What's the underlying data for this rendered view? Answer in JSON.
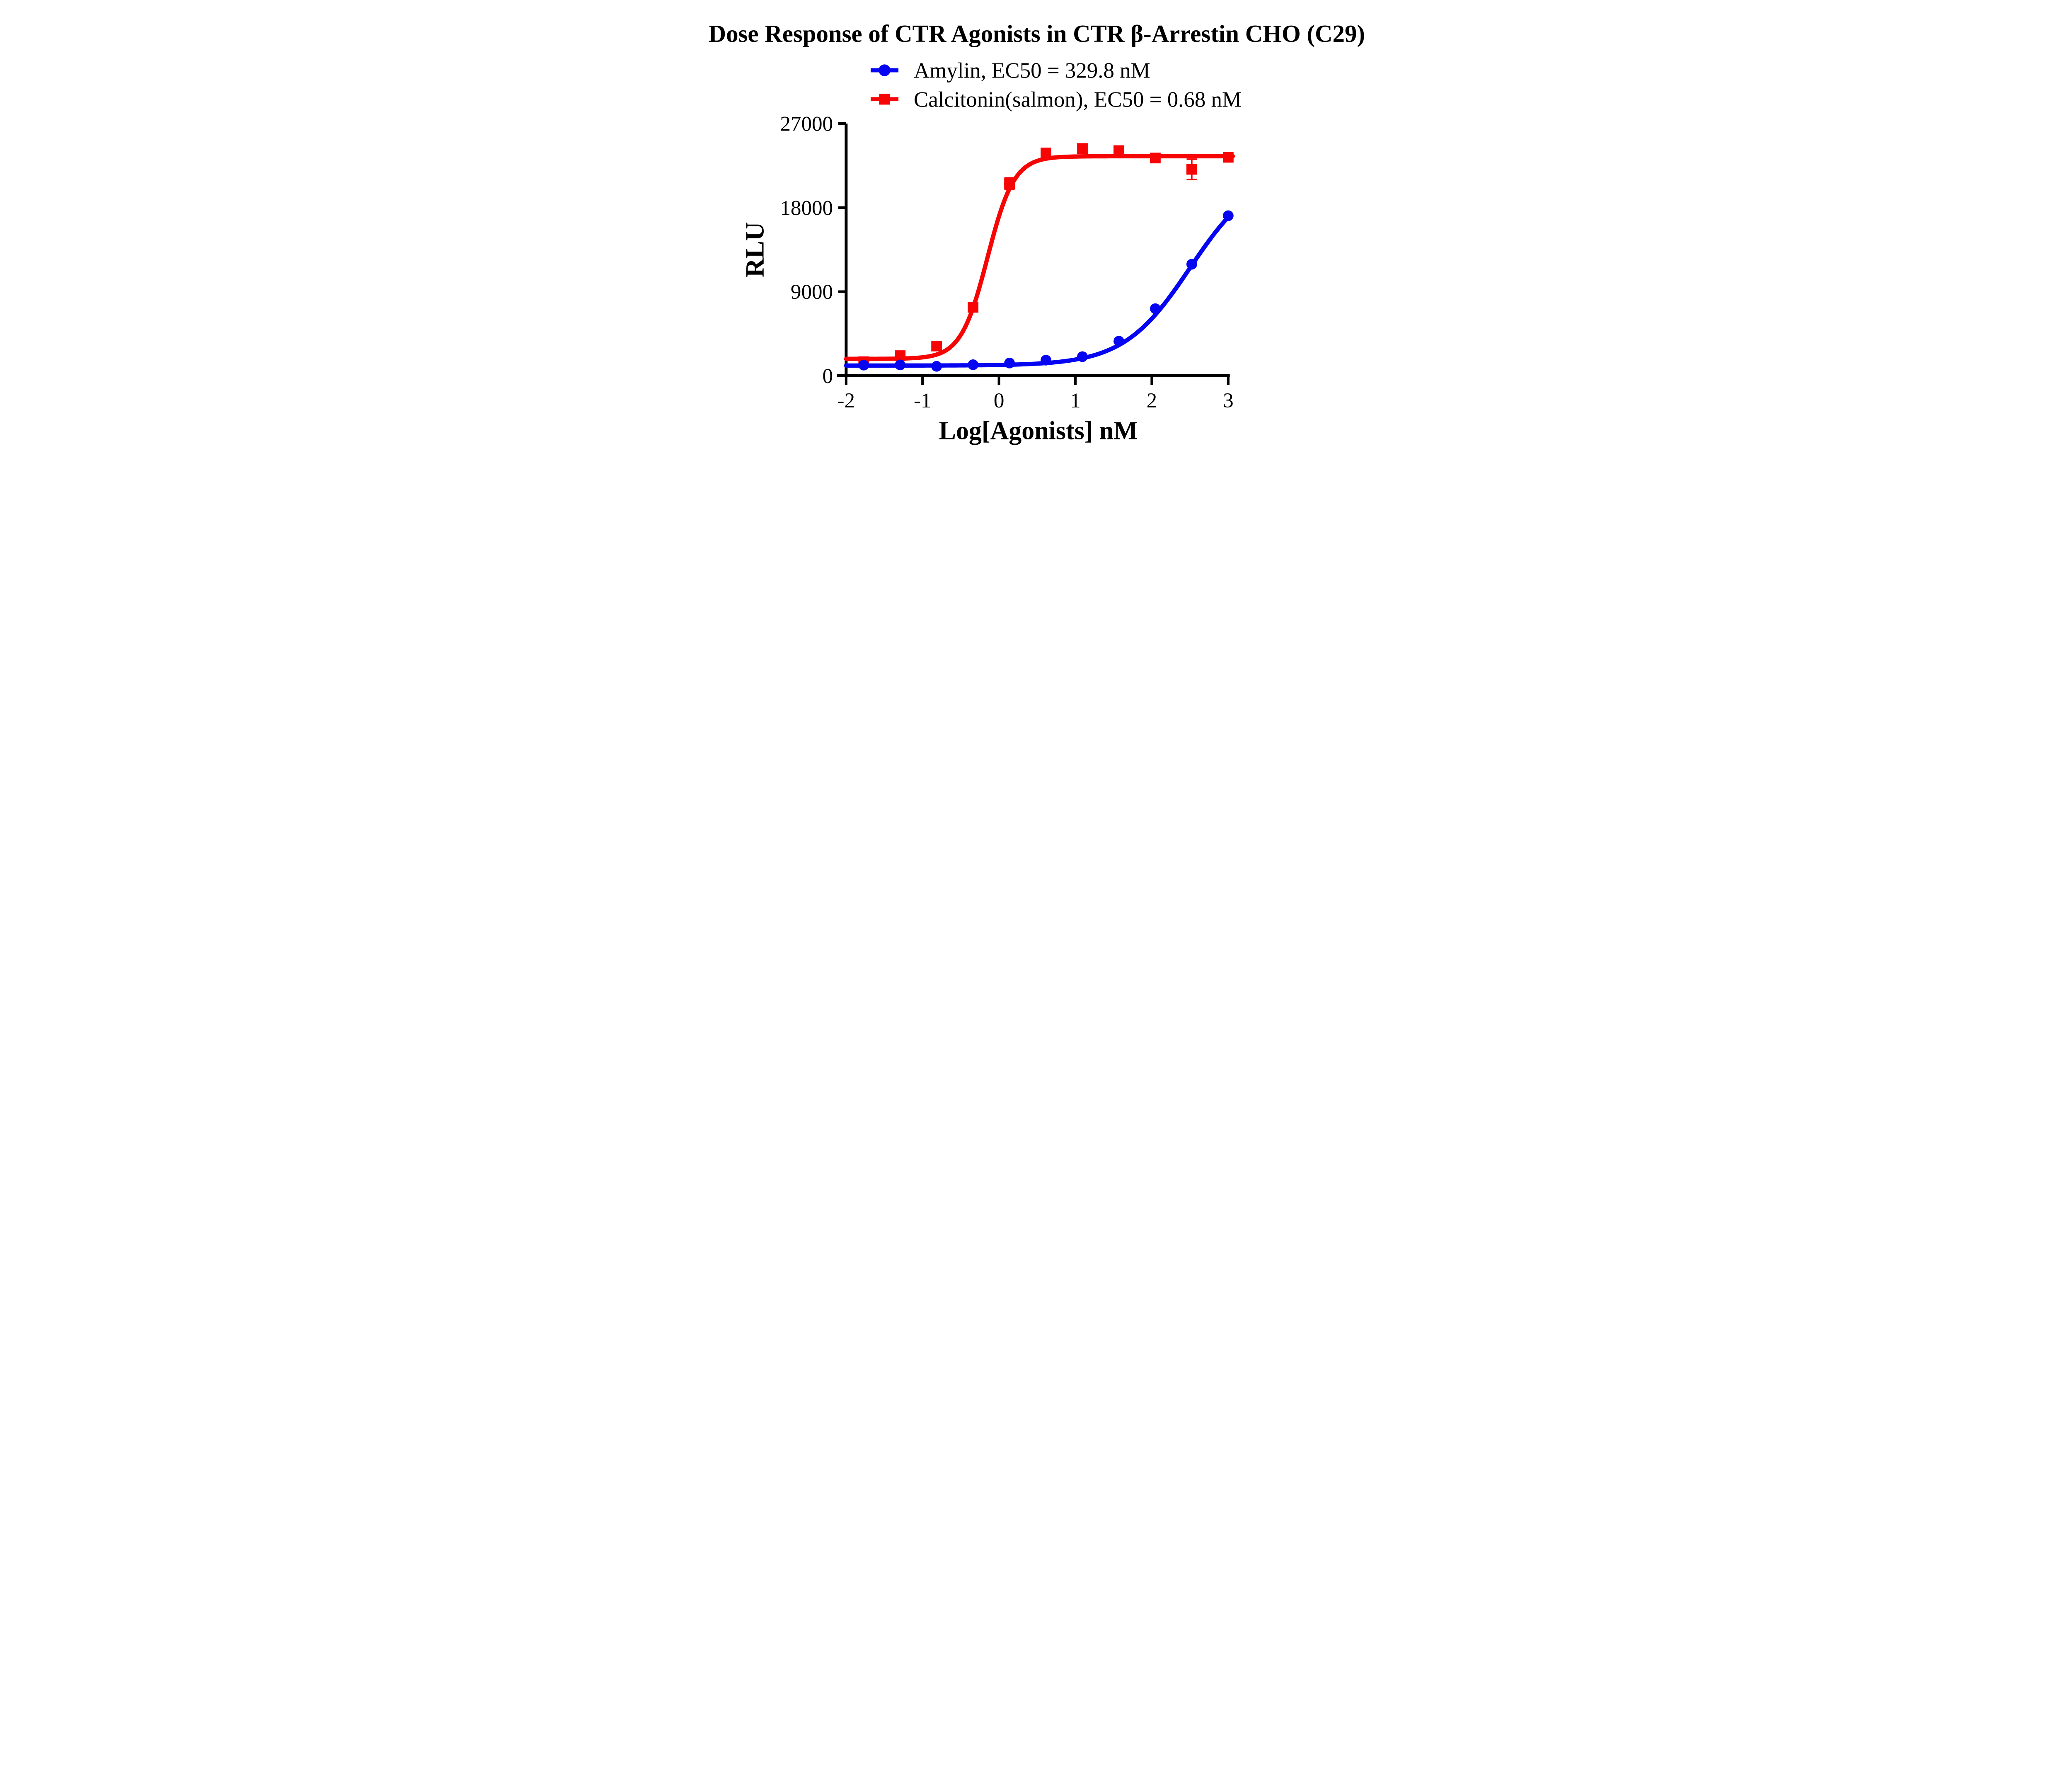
{
  "chart_data": {
    "type": "scatter",
    "subtype": "dose-response-curves",
    "title": "Dose Response of CTR Agonists in CTR β-Arrestin CHO (C29)",
    "xlabel": "Log[Agonists] nM",
    "ylabel": "RLU",
    "xlim": [
      -2,
      3
    ],
    "ylim": [
      0,
      27000
    ],
    "xticks": [
      "-2",
      "-1",
      "0",
      "1",
      "2",
      "3"
    ],
    "xtick_values": [
      -2,
      -1,
      0,
      1,
      2,
      3
    ],
    "yticks": [
      "0",
      "9000",
      "18000",
      "27000"
    ],
    "ytick_values": [
      0,
      9000,
      18000,
      27000
    ],
    "grid": false,
    "background_color": "#FFFFFF",
    "axis_color": "#000000",
    "legend_position": "above-plot-left",
    "series": [
      {
        "name": "Amylin",
        "legend_label": "Amylin, EC50 = 329.8 nM",
        "ec50_display": "329.8 nM",
        "color": "#0505F2",
        "marker": "circle",
        "x": [
          -1.77,
          -1.293,
          -0.816,
          -0.339,
          0.138,
          0.615,
          1.092,
          1.569,
          2.046,
          2.523,
          3.0
        ],
        "y": [
          1130,
          1150,
          1000,
          1170,
          1350,
          1660,
          2030,
          3690,
          7170,
          11930,
          17130
        ],
        "y_err": [
          0,
          0,
          0,
          0,
          0,
          0,
          0,
          0,
          0,
          0,
          0
        ],
        "fit": {
          "model": "log-logistic",
          "bottom": 1080,
          "top": 22000,
          "log_ec50": 2.5,
          "hill": 1.0,
          "draw_range": [
            -2,
            3.0
          ]
        }
      },
      {
        "name": "Calcitonin(salmon)",
        "legend_label": "Calcitonin(salmon), EC50 = 0.68 nM",
        "ec50_display": "0.68 nM",
        "color": "#F70505",
        "marker": "square",
        "x": [
          -1.77,
          -1.293,
          -0.816,
          -0.339,
          0.138,
          0.615,
          1.092,
          1.569,
          2.046,
          2.523,
          3.0
        ],
        "y": [
          1490,
          2140,
          3170,
          7320,
          20560,
          23850,
          24330,
          24100,
          23310,
          22100,
          23390
        ],
        "y_err": [
          0,
          0,
          0,
          0,
          620,
          0,
          0,
          0,
          0,
          1090,
          0
        ],
        "fit": {
          "model": "log-logistic",
          "bottom": 1800,
          "top": 23500,
          "log_ec50": -0.15,
          "hill": 2.5,
          "draw_range": [
            -2,
            3.06
          ]
        }
      }
    ]
  },
  "layout_note_values": {
    "plot_draw_order": [
      "Calcitonin(salmon)",
      "Amylin"
    ]
  }
}
